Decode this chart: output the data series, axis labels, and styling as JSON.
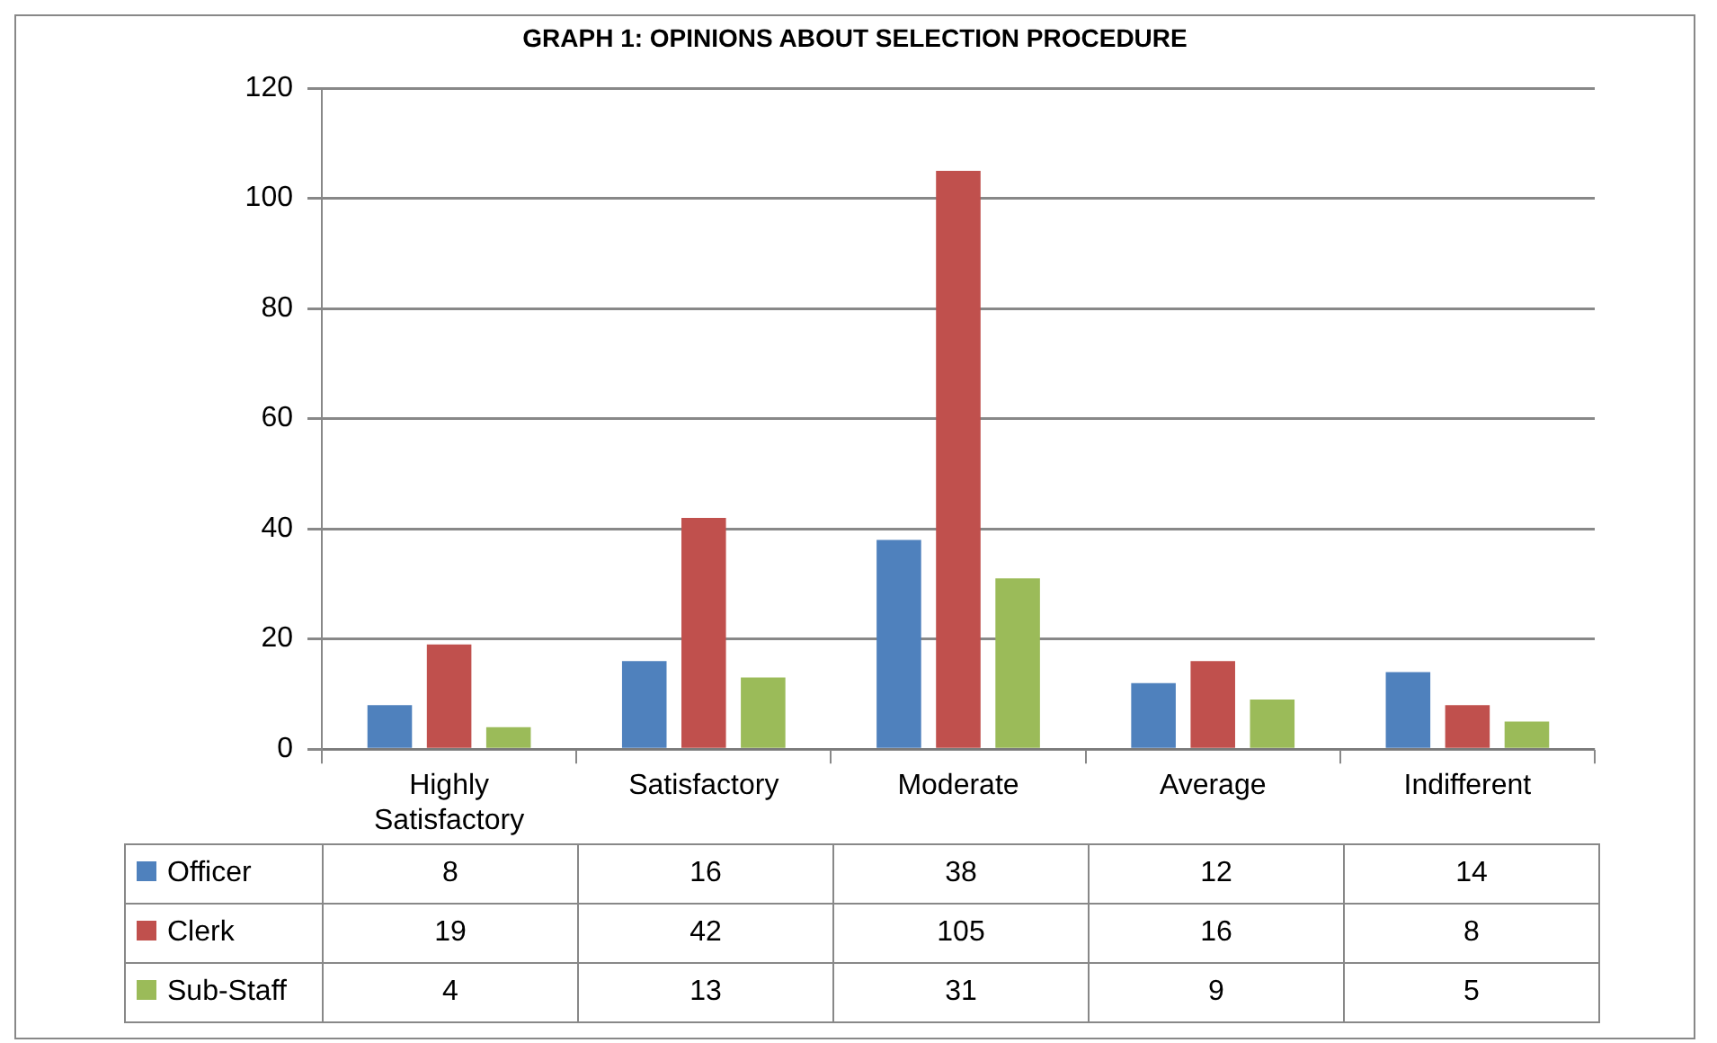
{
  "chart_data": {
    "type": "bar",
    "title": "GRAPH 1: OPINIONS ABOUT SELECTION PROCEDURE",
    "categories": [
      "Highly Satisfactory",
      "Satisfactory",
      "Moderate",
      "Average",
      "Indifferent"
    ],
    "series": [
      {
        "name": "Officer",
        "color": "#4f81bd",
        "values": [
          8,
          16,
          38,
          12,
          14
        ]
      },
      {
        "name": "Clerk",
        "color": "#c0504d",
        "values": [
          19,
          42,
          105,
          16,
          8
        ]
      },
      {
        "name": "Sub-Staff",
        "color": "#9bbb59",
        "values": [
          4,
          13,
          31,
          9,
          5
        ]
      }
    ],
    "ylim": [
      0,
      120
    ],
    "yticks": [
      0,
      20,
      40,
      60,
      80,
      100,
      120
    ],
    "grid": "y",
    "legend": "bottom",
    "data_labels": true
  }
}
